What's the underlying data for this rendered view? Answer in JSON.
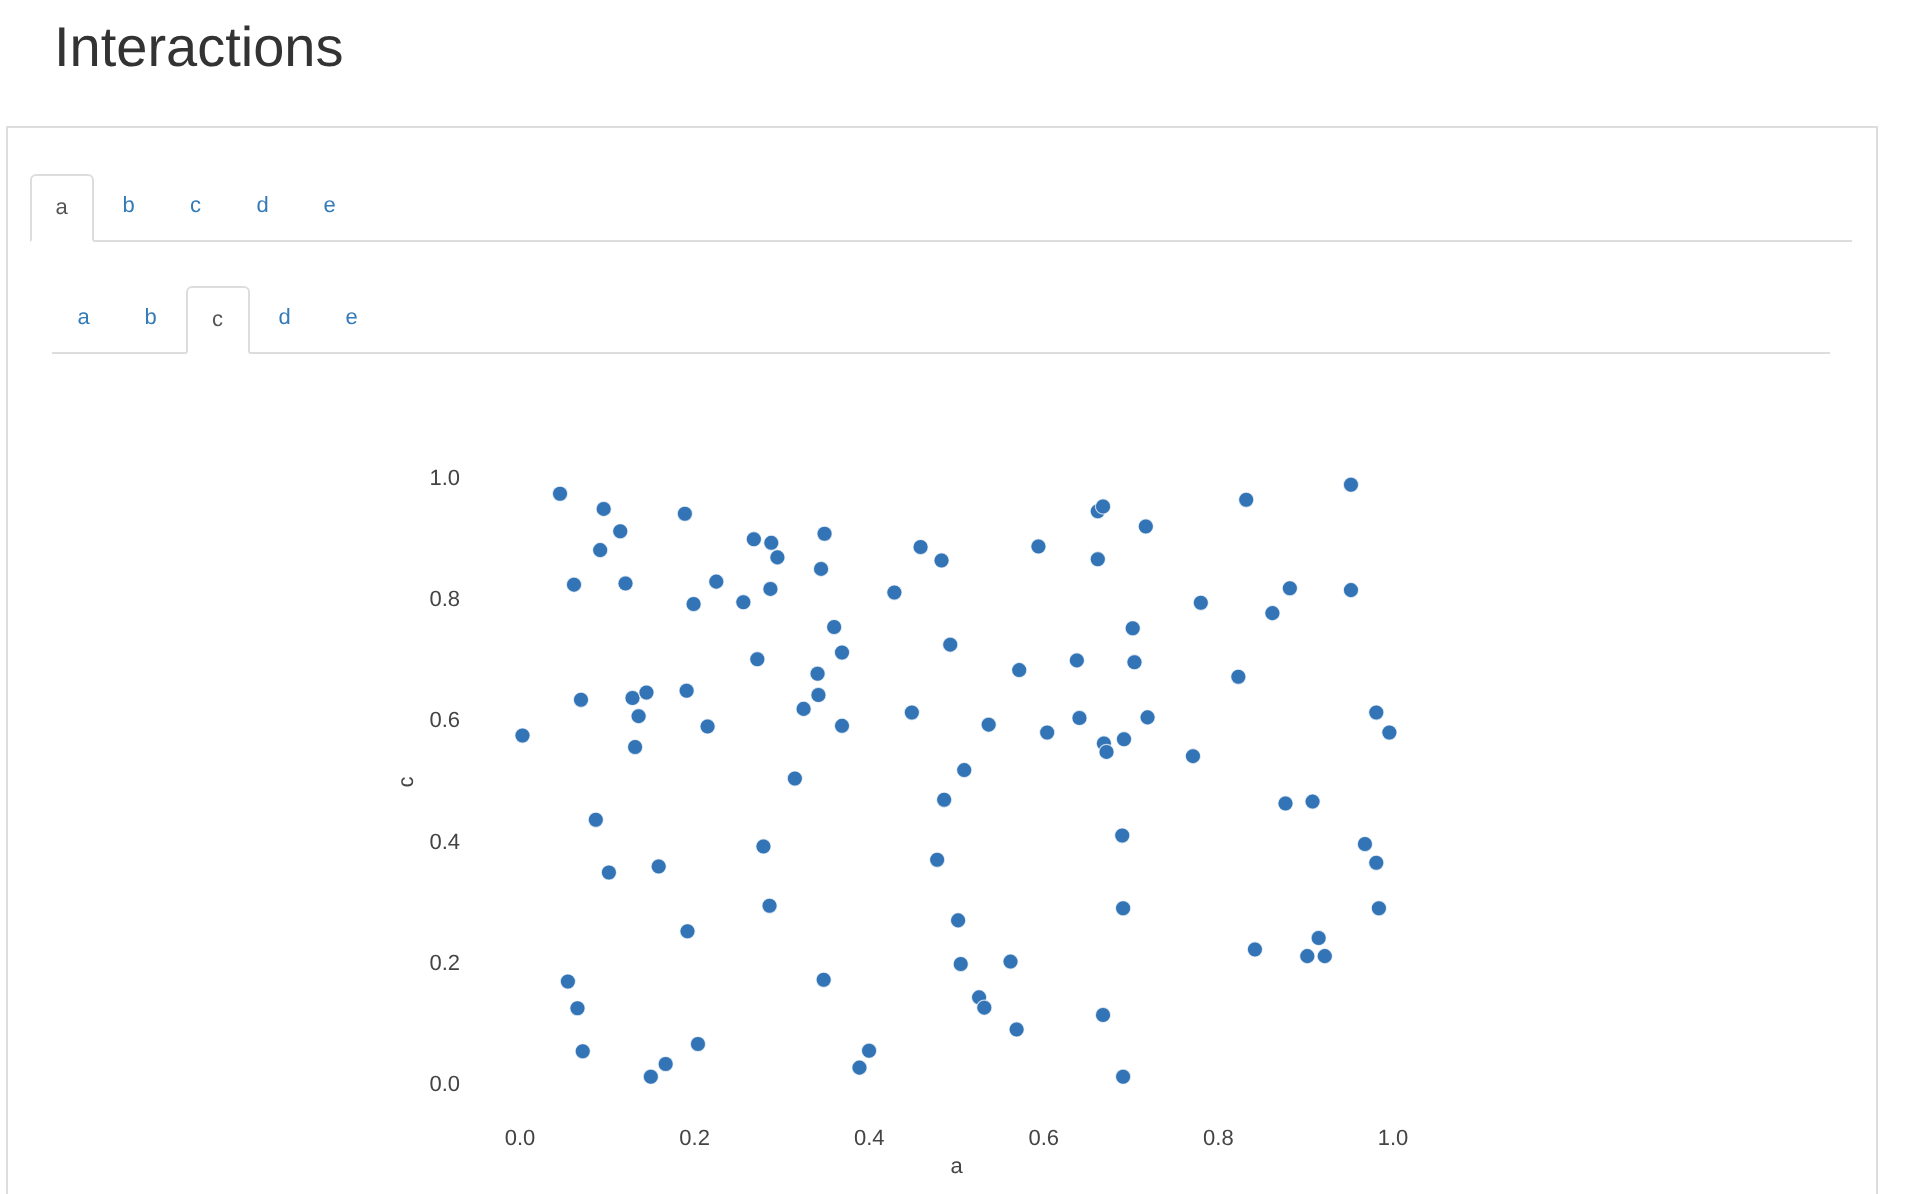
{
  "chart_data": {
    "type": "scatter",
    "title": "Interactions",
    "xlabel": "a",
    "ylabel": "c",
    "x": [
      0.047,
      0.097,
      0.116,
      0.093,
      0.063,
      0.122,
      0.19,
      0.269,
      0.289,
      0.296,
      0.35,
      0.346,
      0.226,
      0.2,
      0.257,
      0.288,
      0.43,
      0.361,
      0.37,
      0.273,
      0.342,
      0.343,
      0.326,
      0.37,
      0.071,
      0.13,
      0.146,
      0.137,
      0.133,
      0.192,
      0.216,
      0.004,
      0.316,
      0.45,
      0.46,
      0.484,
      0.494,
      0.538,
      0.51,
      0.573,
      0.595,
      0.605,
      0.639,
      0.642,
      0.663,
      0.669,
      0.663,
      0.67,
      0.673,
      0.693,
      0.703,
      0.705,
      0.718,
      0.72,
      0.772,
      0.781,
      0.824,
      0.833,
      0.863,
      0.883,
      0.953,
      0.953,
      0.982,
      0.997,
      0.088,
      0.103,
      0.16,
      0.28,
      0.287,
      0.193,
      0.056,
      0.067,
      0.073,
      0.151,
      0.168,
      0.205,
      0.349,
      0.39,
      0.401,
      0.487,
      0.479,
      0.503,
      0.506,
      0.563,
      0.527,
      0.533,
      0.57,
      0.669,
      0.692,
      0.691,
      0.692,
      0.843,
      0.878,
      0.909,
      0.916,
      0.903,
      0.923,
      0.969,
      0.982,
      0.985
    ],
    "values": [
      0.974,
      0.949,
      0.912,
      0.881,
      0.824,
      0.826,
      0.941,
      0.899,
      0.893,
      0.869,
      0.908,
      0.85,
      0.829,
      0.792,
      0.795,
      0.817,
      0.811,
      0.754,
      0.712,
      0.701,
      0.677,
      0.642,
      0.619,
      0.591,
      0.634,
      0.637,
      0.646,
      0.607,
      0.556,
      0.649,
      0.59,
      0.575,
      0.504,
      0.613,
      0.886,
      0.864,
      0.725,
      0.593,
      0.518,
      0.683,
      0.887,
      0.58,
      0.699,
      0.604,
      0.945,
      0.953,
      0.866,
      0.562,
      0.548,
      0.569,
      0.752,
      0.696,
      0.92,
      0.605,
      0.541,
      0.794,
      0.672,
      0.964,
      0.777,
      0.818,
      0.989,
      0.815,
      0.613,
      0.58,
      0.436,
      0.349,
      0.359,
      0.392,
      0.294,
      0.252,
      0.169,
      0.125,
      0.054,
      0.012,
      0.033,
      0.066,
      0.172,
      0.027,
      0.055,
      0.469,
      0.37,
      0.27,
      0.198,
      0.202,
      0.143,
      0.126,
      0.09,
      0.114,
      0.012,
      0.41,
      0.29,
      0.222,
      0.463,
      0.466,
      0.241,
      0.211,
      0.211,
      0.396,
      0.365,
      0.29
    ],
    "color": "#3274b5",
    "marker": "circle",
    "xlim": [
      0,
      1
    ],
    "ylim": [
      0,
      1
    ],
    "xticks": [
      {
        "value": 0,
        "label": "0.0"
      },
      0.2,
      0.4,
      0.6,
      0.8,
      {
        "value": 1,
        "label": "1.0"
      }
    ],
    "yticks": [
      {
        "value": 0,
        "label": "0.0"
      },
      0.2,
      0.4,
      0.6,
      0.8,
      {
        "value": 1,
        "label": "1.0"
      }
    ],
    "annotations": [
      "a",
      "b",
      "c",
      "d",
      "e",
      "a",
      "b",
      "c",
      "d",
      "e"
    ]
  }
}
